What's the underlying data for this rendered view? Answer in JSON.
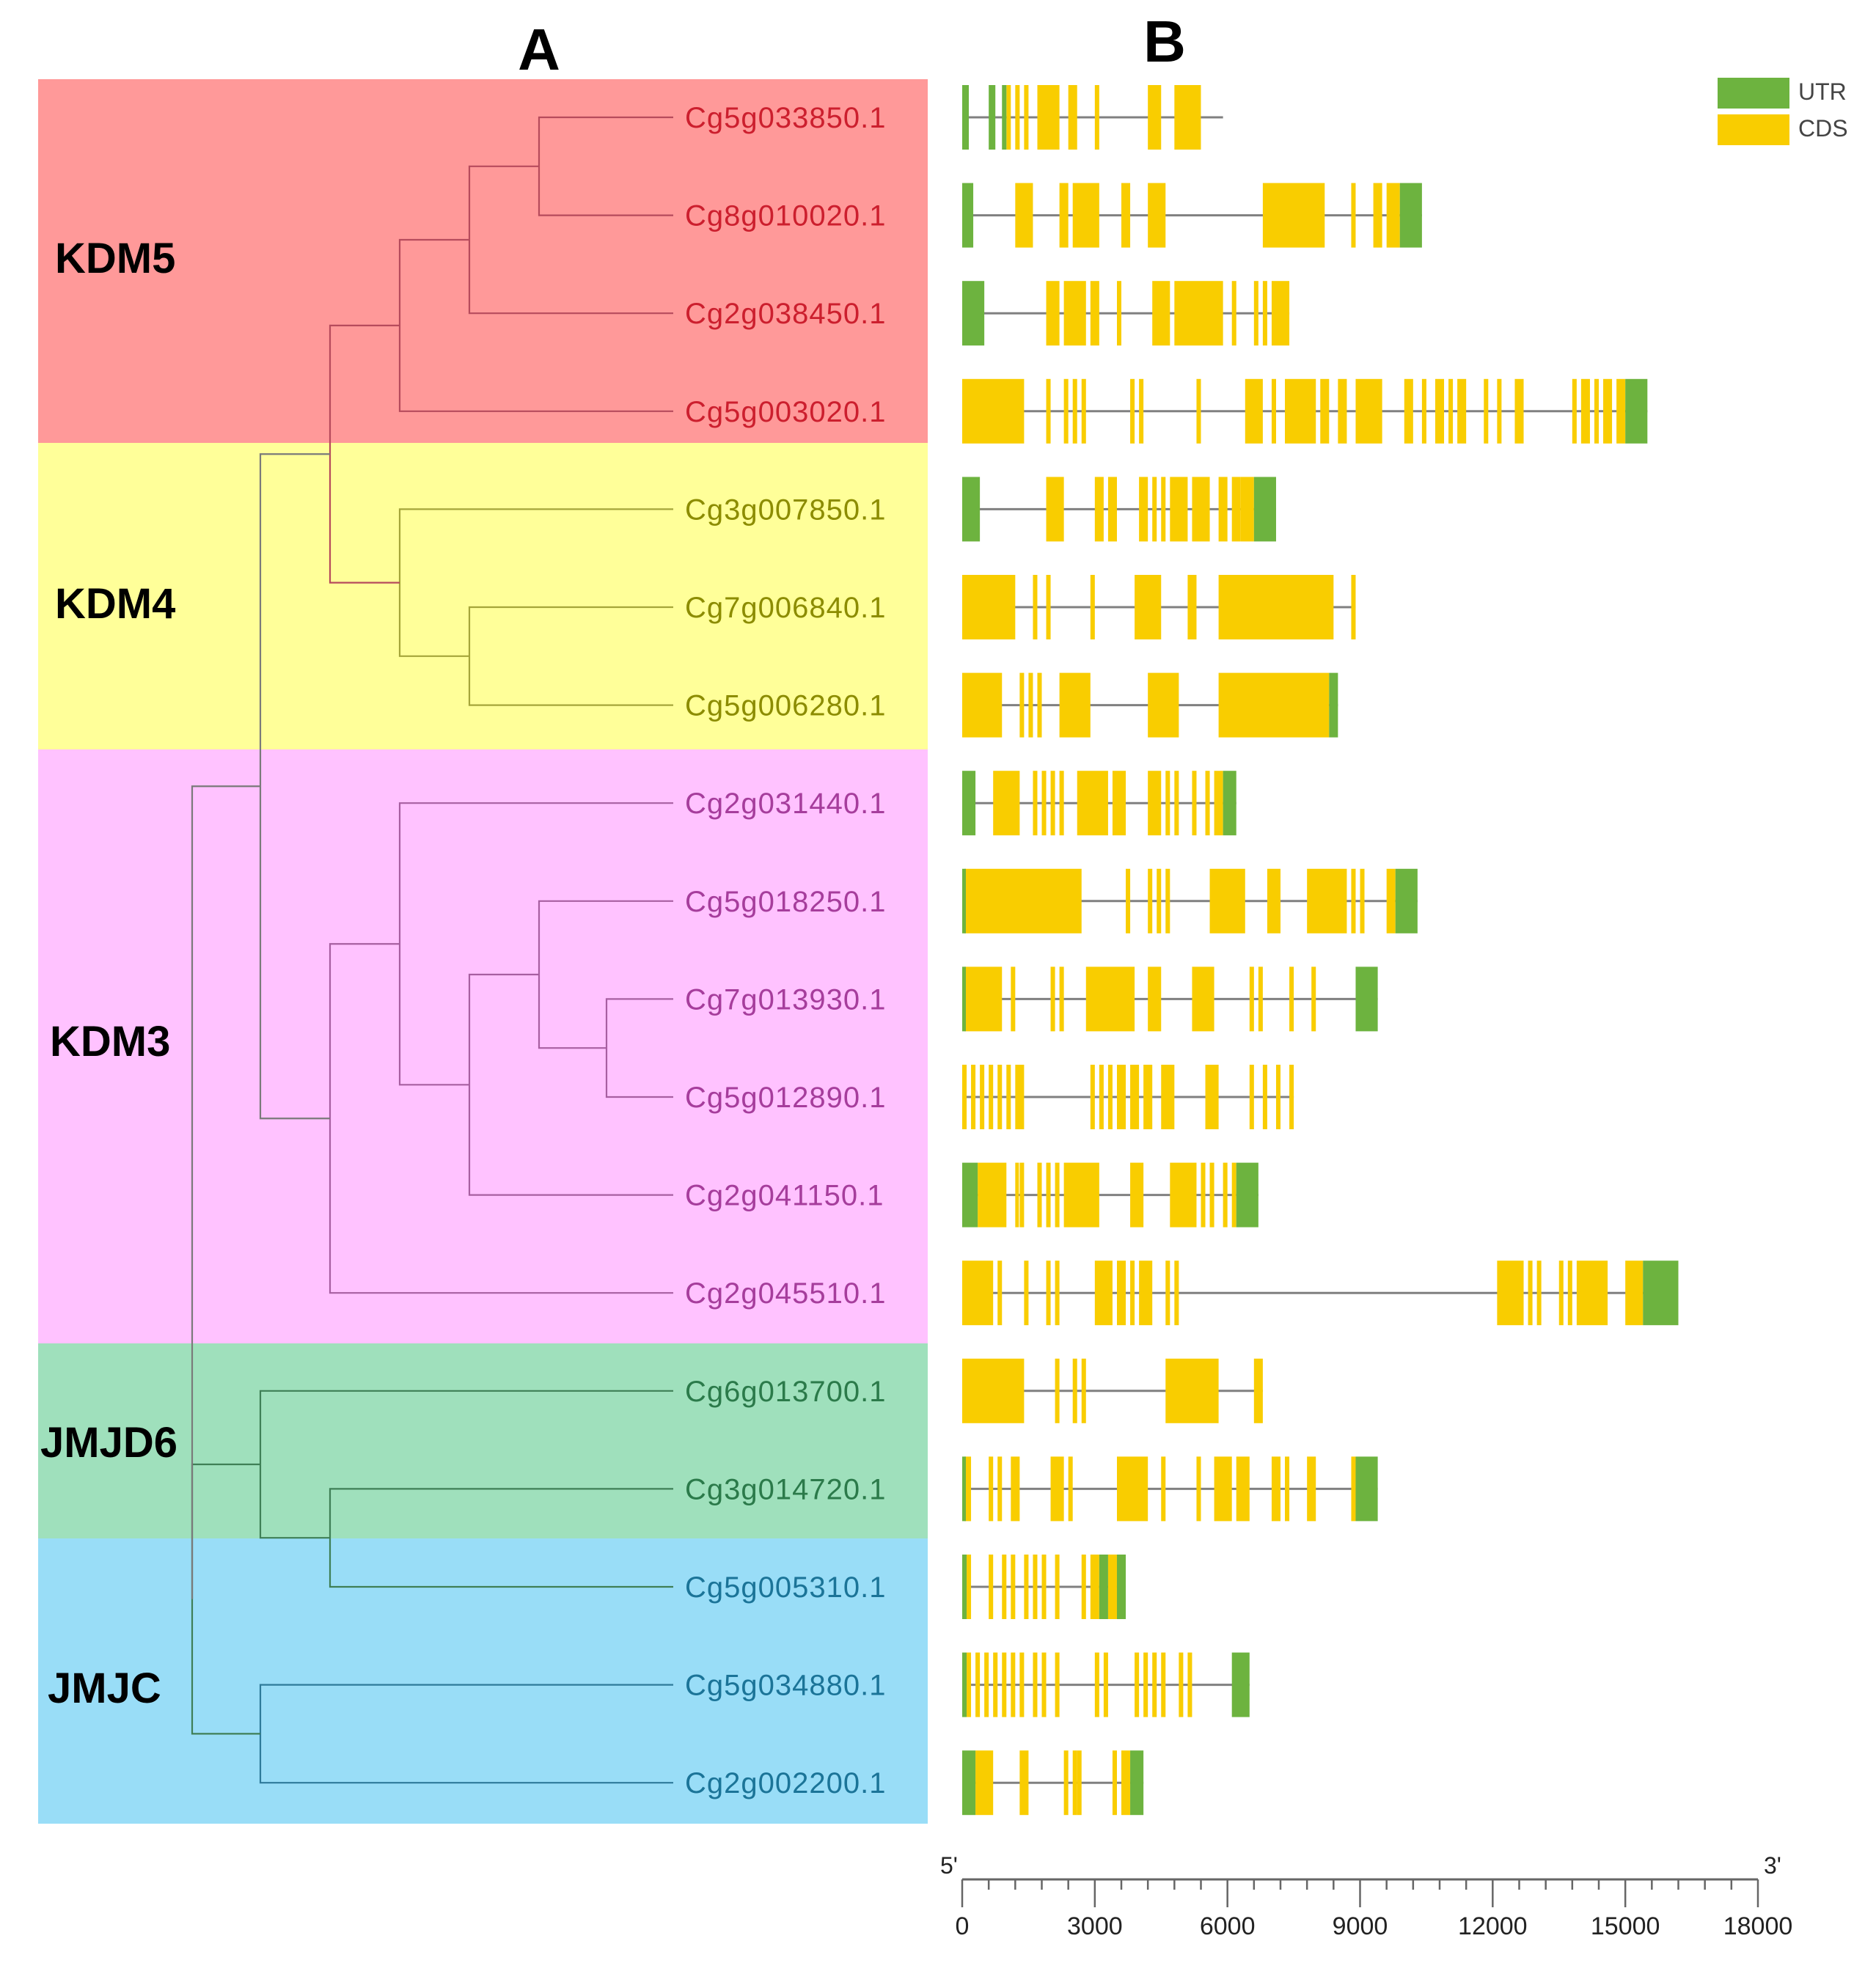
{
  "panels": {
    "a": "A",
    "b": "B"
  },
  "legend": [
    {
      "label": "UTR",
      "color": "#6db33f"
    },
    {
      "label": "CDS",
      "color": "#f9cd00"
    }
  ],
  "colors": {
    "intron": "#808080",
    "axis": "#666666"
  },
  "clades": [
    {
      "name": "KDM5",
      "bg": "#ff9999",
      "text": "#cc1f2e"
    },
    {
      "name": "KDM4",
      "bg": "#ffff99",
      "text": "#8c8c00"
    },
    {
      "name": "KDM3",
      "bg": "#ffc2ff",
      "text": "#a63d9c"
    },
    {
      "name": "JMJD6",
      "bg": "#9fe0bc",
      "text": "#2b7a4a"
    },
    {
      "name": "JMJC",
      "bg": "#99ddf7",
      "text": "#1b7498"
    }
  ],
  "axis": {
    "start_label": "5'",
    "end_label": "3'",
    "min": 0,
    "max": 18000,
    "ticks": [
      0,
      3000,
      6000,
      9000,
      12000,
      15000,
      18000
    ]
  },
  "genes": [
    {
      "id": "Cg5g033850.1",
      "clade": "KDM5",
      "length": 5900,
      "utr": [
        [
          0,
          150
        ],
        [
          600,
          750
        ],
        [
          900,
          1000
        ]
      ],
      "cds": [
        [
          1000,
          1100
        ],
        [
          1200,
          1300
        ],
        [
          1400,
          1500
        ],
        [
          1700,
          2200
        ],
        [
          2400,
          2600
        ],
        [
          3000,
          3100
        ],
        [
          4200,
          4500
        ],
        [
          4800,
          5400
        ]
      ]
    },
    {
      "id": "Cg8g010020.1",
      "clade": "KDM5",
      "length": 10400,
      "utr": [
        [
          0,
          250
        ],
        [
          9900,
          10400
        ]
      ],
      "cds": [
        [
          1200,
          1600
        ],
        [
          2200,
          2400
        ],
        [
          2500,
          3100
        ],
        [
          3600,
          3800
        ],
        [
          4200,
          4600
        ],
        [
          6800,
          8200
        ],
        [
          8800,
          8900
        ],
        [
          9300,
          9500
        ],
        [
          9600,
          9900
        ]
      ]
    },
    {
      "id": "Cg2g038450.1",
      "clade": "KDM5",
      "length": 7400,
      "utr": [
        [
          0,
          500
        ]
      ],
      "cds": [
        [
          1900,
          2200
        ],
        [
          2300,
          2800
        ],
        [
          2900,
          3100
        ],
        [
          3500,
          3600
        ],
        [
          4300,
          4700
        ],
        [
          4800,
          5900
        ],
        [
          6100,
          6200
        ],
        [
          6600,
          6700
        ],
        [
          6800,
          6900
        ],
        [
          7000,
          7400
        ]
      ]
    },
    {
      "id": "Cg5g003020.1",
      "clade": "KDM5",
      "length": 15500,
      "utr": [
        [
          15000,
          15500
        ]
      ],
      "cds": [
        [
          0,
          1400
        ],
        [
          1900,
          2000
        ],
        [
          2300,
          2400
        ],
        [
          2500,
          2600
        ],
        [
          2700,
          2800
        ],
        [
          3800,
          3900
        ],
        [
          4000,
          4100
        ],
        [
          5300,
          5400
        ],
        [
          6400,
          6800
        ],
        [
          7000,
          7100
        ],
        [
          7300,
          8000
        ],
        [
          8100,
          8300
        ],
        [
          8500,
          8700
        ],
        [
          8900,
          9500
        ],
        [
          10000,
          10200
        ],
        [
          10400,
          10500
        ],
        [
          10700,
          10900
        ],
        [
          11000,
          11100
        ],
        [
          11200,
          11400
        ],
        [
          11800,
          11900
        ],
        [
          12100,
          12200
        ],
        [
          12500,
          12700
        ],
        [
          13800,
          13900
        ],
        [
          14000,
          14200
        ],
        [
          14300,
          14400
        ],
        [
          14500,
          14700
        ],
        [
          14800,
          15000
        ]
      ]
    },
    {
      "id": "Cg3g007850.1",
      "clade": "KDM4",
      "length": 7100,
      "utr": [
        [
          0,
          400
        ],
        [
          6600,
          7100
        ]
      ],
      "cds": [
        [
          1900,
          2300
        ],
        [
          3000,
          3200
        ],
        [
          3300,
          3500
        ],
        [
          4000,
          4200
        ],
        [
          4300,
          4400
        ],
        [
          4500,
          4600
        ],
        [
          4700,
          5100
        ],
        [
          5200,
          5600
        ],
        [
          5800,
          6000
        ],
        [
          6100,
          6300
        ],
        [
          6300,
          6600
        ]
      ]
    },
    {
      "id": "Cg7g006840.1",
      "clade": "KDM4",
      "length": 8900,
      "utr": [],
      "cds": [
        [
          0,
          1200
        ],
        [
          1600,
          1700
        ],
        [
          1900,
          2000
        ],
        [
          2900,
          3000
        ],
        [
          3900,
          4500
        ],
        [
          5100,
          5300
        ],
        [
          5800,
          8400
        ],
        [
          8800,
          8900
        ]
      ]
    },
    {
      "id": "Cg5g006280.1",
      "clade": "KDM4",
      "length": 8500,
      "utr": [
        [
          8300,
          8500
        ]
      ],
      "cds": [
        [
          0,
          900
        ],
        [
          1300,
          1400
        ],
        [
          1500,
          1600
        ],
        [
          1700,
          1800
        ],
        [
          2200,
          2900
        ],
        [
          4200,
          4900
        ],
        [
          5800,
          8300
        ]
      ]
    },
    {
      "id": "Cg2g031440.1",
      "clade": "KDM3",
      "length": 6200,
      "utr": [
        [
          0,
          300
        ],
        [
          5900,
          6200
        ]
      ],
      "cds": [
        [
          700,
          1300
        ],
        [
          1600,
          1700
        ],
        [
          1800,
          1900
        ],
        [
          2000,
          2100
        ],
        [
          2200,
          2300
        ],
        [
          2600,
          3300
        ],
        [
          3400,
          3700
        ],
        [
          4200,
          4500
        ],
        [
          4600,
          4700
        ],
        [
          4800,
          4900
        ],
        [
          5200,
          5300
        ],
        [
          5500,
          5600
        ],
        [
          5700,
          5900
        ]
      ]
    },
    {
      "id": "Cg5g018250.1",
      "clade": "KDM3",
      "length": 10300,
      "utr": [
        [
          0,
          50
        ],
        [
          9800,
          10300
        ]
      ],
      "cds": [
        [
          50,
          2700
        ],
        [
          3700,
          3800
        ],
        [
          4200,
          4300
        ],
        [
          4400,
          4500
        ],
        [
          4600,
          4700
        ],
        [
          5600,
          6400
        ],
        [
          6900,
          7200
        ],
        [
          7800,
          8700
        ],
        [
          8800,
          8900
        ],
        [
          9000,
          9100
        ],
        [
          9600,
          9800
        ]
      ]
    },
    {
      "id": "Cg7g013930.1",
      "clade": "KDM3",
      "length": 9400,
      "utr": [
        [
          0,
          50
        ],
        [
          8900,
          9400
        ]
      ],
      "cds": [
        [
          50,
          900
        ],
        [
          1100,
          1200
        ],
        [
          2000,
          2100
        ],
        [
          2200,
          2300
        ],
        [
          2800,
          3900
        ],
        [
          4200,
          4500
        ],
        [
          5200,
          5700
        ],
        [
          6500,
          6600
        ],
        [
          6700,
          6800
        ],
        [
          7400,
          7500
        ],
        [
          7900,
          8000
        ]
      ]
    },
    {
      "id": "Cg5g012890.1",
      "clade": "KDM3",
      "length": 7500,
      "utr": [],
      "cds": [
        [
          0,
          100
        ],
        [
          200,
          300
        ],
        [
          400,
          500
        ],
        [
          600,
          700
        ],
        [
          800,
          900
        ],
        [
          1000,
          1100
        ],
        [
          1200,
          1400
        ],
        [
          2900,
          3000
        ],
        [
          3100,
          3200
        ],
        [
          3300,
          3400
        ],
        [
          3500,
          3700
        ],
        [
          3800,
          4000
        ],
        [
          4100,
          4300
        ],
        [
          4500,
          4800
        ],
        [
          5500,
          5800
        ],
        [
          6500,
          6600
        ],
        [
          6800,
          6900
        ],
        [
          7100,
          7200
        ],
        [
          7400,
          7500
        ]
      ]
    },
    {
      "id": "Cg2g041150.1",
      "clade": "KDM3",
      "length": 6700,
      "utr": [
        [
          0,
          350
        ],
        [
          6200,
          6700
        ]
      ],
      "cds": [
        [
          350,
          1000
        ],
        [
          1200,
          1200
        ],
        [
          1300,
          1400
        ],
        [
          1700,
          1800
        ],
        [
          1900,
          2000
        ],
        [
          2100,
          2200
        ],
        [
          2300,
          3100
        ],
        [
          3800,
          4100
        ],
        [
          4700,
          5300
        ],
        [
          5400,
          5500
        ],
        [
          5600,
          5700
        ],
        [
          5900,
          6000
        ],
        [
          6100,
          6200
        ]
      ]
    },
    {
      "id": "Cg2g045510.1",
      "clade": "KDM3",
      "length": 16200,
      "utr": [
        [
          15400,
          16200
        ]
      ],
      "cds": [
        [
          0,
          700
        ],
        [
          800,
          900
        ],
        [
          1400,
          1500
        ],
        [
          1900,
          2000
        ],
        [
          2100,
          2200
        ],
        [
          3000,
          3400
        ],
        [
          3500,
          3700
        ],
        [
          3800,
          3900
        ],
        [
          4000,
          4300
        ],
        [
          4600,
          4700
        ],
        [
          4800,
          4900
        ],
        [
          12100,
          12700
        ],
        [
          12800,
          12900
        ],
        [
          13000,
          13100
        ],
        [
          13500,
          13600
        ],
        [
          13700,
          13800
        ],
        [
          13900,
          14600
        ],
        [
          15000,
          15400
        ]
      ]
    },
    {
      "id": "Cg6g013700.1",
      "clade": "JMJD6",
      "length": 6800,
      "utr": [],
      "cds": [
        [
          0,
          1400
        ],
        [
          2100,
          2200
        ],
        [
          2500,
          2600
        ],
        [
          2700,
          2800
        ],
        [
          4600,
          5800
        ],
        [
          6600,
          6800
        ]
      ]
    },
    {
      "id": "Cg3g014720.1",
      "clade": "JMJD6",
      "length": 9400,
      "utr": [
        [
          0,
          50
        ],
        [
          8900,
          9400
        ]
      ],
      "cds": [
        [
          50,
          200
        ],
        [
          600,
          700
        ],
        [
          800,
          900
        ],
        [
          1100,
          1300
        ],
        [
          2000,
          2300
        ],
        [
          2400,
          2500
        ],
        [
          3500,
          4200
        ],
        [
          4500,
          4600
        ],
        [
          5300,
          5400
        ],
        [
          5700,
          6100
        ],
        [
          6200,
          6500
        ],
        [
          7000,
          7200
        ],
        [
          7300,
          7400
        ],
        [
          7800,
          8000
        ],
        [
          8800,
          8900
        ]
      ]
    },
    {
      "id": "Cg5g005310.1",
      "clade": "JMJC",
      "length": 3700,
      "utr": [
        [
          0,
          100
        ],
        [
          3100,
          3300
        ],
        [
          3500,
          3700
        ]
      ],
      "cds": [
        [
          100,
          200
        ],
        [
          600,
          700
        ],
        [
          900,
          1000
        ],
        [
          1100,
          1200
        ],
        [
          1400,
          1500
        ],
        [
          1600,
          1700
        ],
        [
          1800,
          1900
        ],
        [
          2100,
          2200
        ],
        [
          2700,
          2800
        ],
        [
          2900,
          3100
        ],
        [
          3300,
          3500
        ]
      ]
    },
    {
      "id": "Cg5g034880.1",
      "clade": "JMJC",
      "length": 6500,
      "utr": [
        [
          0,
          100
        ],
        [
          6100,
          6500
        ]
      ],
      "cds": [
        [
          100,
          200
        ],
        [
          300,
          400
        ],
        [
          500,
          600
        ],
        [
          700,
          800
        ],
        [
          900,
          1000
        ],
        [
          1100,
          1200
        ],
        [
          1300,
          1400
        ],
        [
          1600,
          1700
        ],
        [
          1800,
          1900
        ],
        [
          2100,
          2200
        ],
        [
          3000,
          3100
        ],
        [
          3200,
          3300
        ],
        [
          3900,
          4000
        ],
        [
          4100,
          4200
        ],
        [
          4300,
          4400
        ],
        [
          4500,
          4600
        ],
        [
          4900,
          5000
        ],
        [
          5100,
          5200
        ]
      ]
    },
    {
      "id": "Cg2g002200.1",
      "clade": "JMJC",
      "length": 4100,
      "utr": [
        [
          0,
          300
        ],
        [
          3800,
          4100
        ]
      ],
      "cds": [
        [
          300,
          700
        ],
        [
          1300,
          1500
        ],
        [
          2300,
          2400
        ],
        [
          2500,
          2600
        ],
        [
          2600,
          2700
        ],
        [
          3400,
          3500
        ],
        [
          3600,
          3800
        ]
      ]
    }
  ]
}
